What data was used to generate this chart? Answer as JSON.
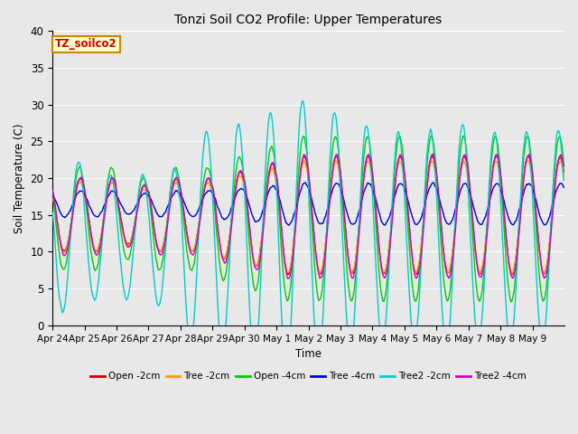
{
  "title": "Tonzi Soil CO2 Profile: Upper Temperatures",
  "ylabel": "Soil Temperature (C)",
  "xlabel": "Time",
  "box_label": "TZ_soilco2",
  "ylim": [
    0,
    40
  ],
  "yticks": [
    0,
    5,
    10,
    15,
    20,
    25,
    30,
    35,
    40
  ],
  "series": [
    {
      "label": "Open -2cm",
      "color": "#cc0000"
    },
    {
      "label": "Tree -2cm",
      "color": "#ff9900"
    },
    {
      "label": "Open -4cm",
      "color": "#00cc00"
    },
    {
      "label": "Tree -4cm",
      "color": "#0000cc"
    },
    {
      "label": "Tree2 -2cm",
      "color": "#00cccc"
    },
    {
      "label": "Tree2 -4cm",
      "color": "#cc00cc"
    }
  ],
  "xtick_labels": [
    "Apr 24",
    "Apr 25",
    "Apr 26",
    "Apr 27",
    "Apr 28",
    "Apr 29",
    "Apr 30",
    "May 1",
    "May 2",
    "May 3",
    "May 4",
    "May 5",
    "May 6",
    "May 7",
    "May 8",
    "May 9"
  ],
  "n_days": 16,
  "points_per_day": 48,
  "background_color": "#e8e8e8",
  "plot_bg": "#e8e8e8",
  "grid_color": "#ffffff",
  "figsize": [
    6.4,
    4.8
  ],
  "dpi": 100
}
